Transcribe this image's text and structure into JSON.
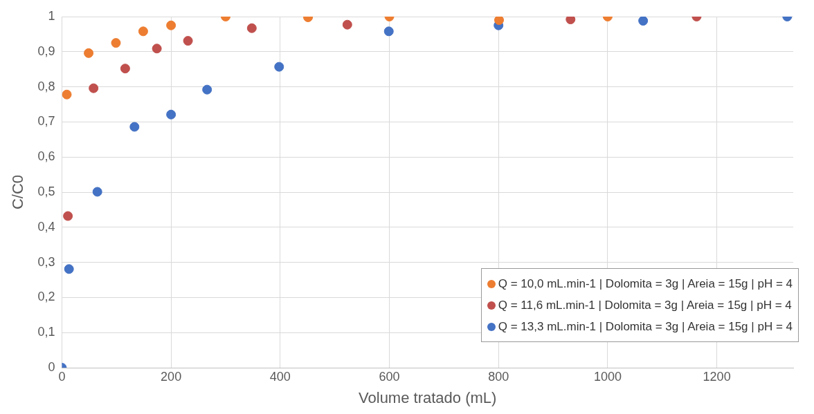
{
  "chart_data": {
    "type": "scatter",
    "xlabel": "Volume tratado (mL)",
    "ylabel": "C/C0",
    "xlim": [
      0,
      1340
    ],
    "ylim": [
      0,
      1
    ],
    "xticks": [
      0,
      200,
      400,
      600,
      800,
      1000,
      1200
    ],
    "yticks": [
      0,
      {
        "value": 0.1,
        "label": "0,1"
      },
      {
        "value": 0.2,
        "label": "0,2"
      },
      {
        "value": 0.3,
        "label": "0,3"
      },
      {
        "value": 0.4,
        "label": "0,4"
      },
      {
        "value": 0.5,
        "label": "0,5"
      },
      {
        "value": 0.6,
        "label": "0,6"
      },
      {
        "value": 0.7,
        "label": "0,7"
      },
      {
        "value": 0.8,
        "label": "0,8"
      },
      {
        "value": 0.9,
        "label": "0,9"
      },
      1
    ],
    "grid": true,
    "legend": "bottom right",
    "marker": "circle",
    "series": [
      {
        "name": "Q = 10,0 mL.min-1 | Dolomita = 3g | Areia = 15g | pH = 4",
        "color": "#ed7d31",
        "x": [
          9,
          49,
          99,
          149,
          200,
          300,
          451,
          600,
          801,
          1000
        ],
        "values": [
          0.778,
          0.896,
          0.925,
          0.958,
          0.975,
          1.0,
          0.998,
          1.0,
          0.99,
          1.0
        ]
      },
      {
        "name": "Q = 11,6 mL.min-1 | Dolomita = 3g | Areia = 15g | pH = 4",
        "color": "#c0504d",
        "x": [
          11,
          58,
          116,
          174,
          231,
          348,
          523,
          932,
          1163
        ],
        "values": [
          0.432,
          0.796,
          0.852,
          0.909,
          0.931,
          0.967,
          0.977,
          0.992,
          1.0
        ]
      },
      {
        "name": "Q = 13,3 mL.min-1 | Dolomita = 3g | Areia = 15g | pH = 4",
        "color": "#4472c4",
        "x": [
          0,
          13,
          65,
          133,
          200,
          266,
          398,
          599,
          800,
          1065,
          1329
        ],
        "values": [
          0,
          0.281,
          0.501,
          0.686,
          0.721,
          0.792,
          0.857,
          0.958,
          0.975,
          0.988,
          1.0
        ]
      }
    ]
  }
}
